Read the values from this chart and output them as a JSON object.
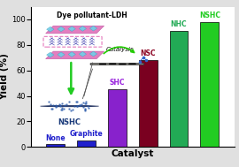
{
  "xlabel": "Catalyst",
  "ylabel": "Yield (%)",
  "title": "Dye pollutant-LDH",
  "categories": [
    "None",
    "Graphite",
    "SHC",
    "NSC",
    "NHC",
    "NSHC"
  ],
  "values": [
    2,
    5,
    45,
    68,
    91,
    98
  ],
  "bar_colors": [
    "#2020cc",
    "#2020cc",
    "#8822cc",
    "#7a0020",
    "#22aa55",
    "#22cc22"
  ],
  "label_colors": [
    "#2020cc",
    "#2020cc",
    "#9922dd",
    "#8b0020",
    "#22aa55",
    "#22cc22"
  ],
  "bar_width": 0.6,
  "ylim": [
    0,
    110
  ],
  "yticks": [
    0,
    20,
    40,
    60,
    80,
    100
  ],
  "figsize": [
    2.7,
    1.89
  ],
  "dpi": 100,
  "background_color": "#e0e0e0",
  "plot_bg": "#ffffff",
  "bar_label_fontsize": 5.5,
  "axis_label_fontsize": 7.5
}
